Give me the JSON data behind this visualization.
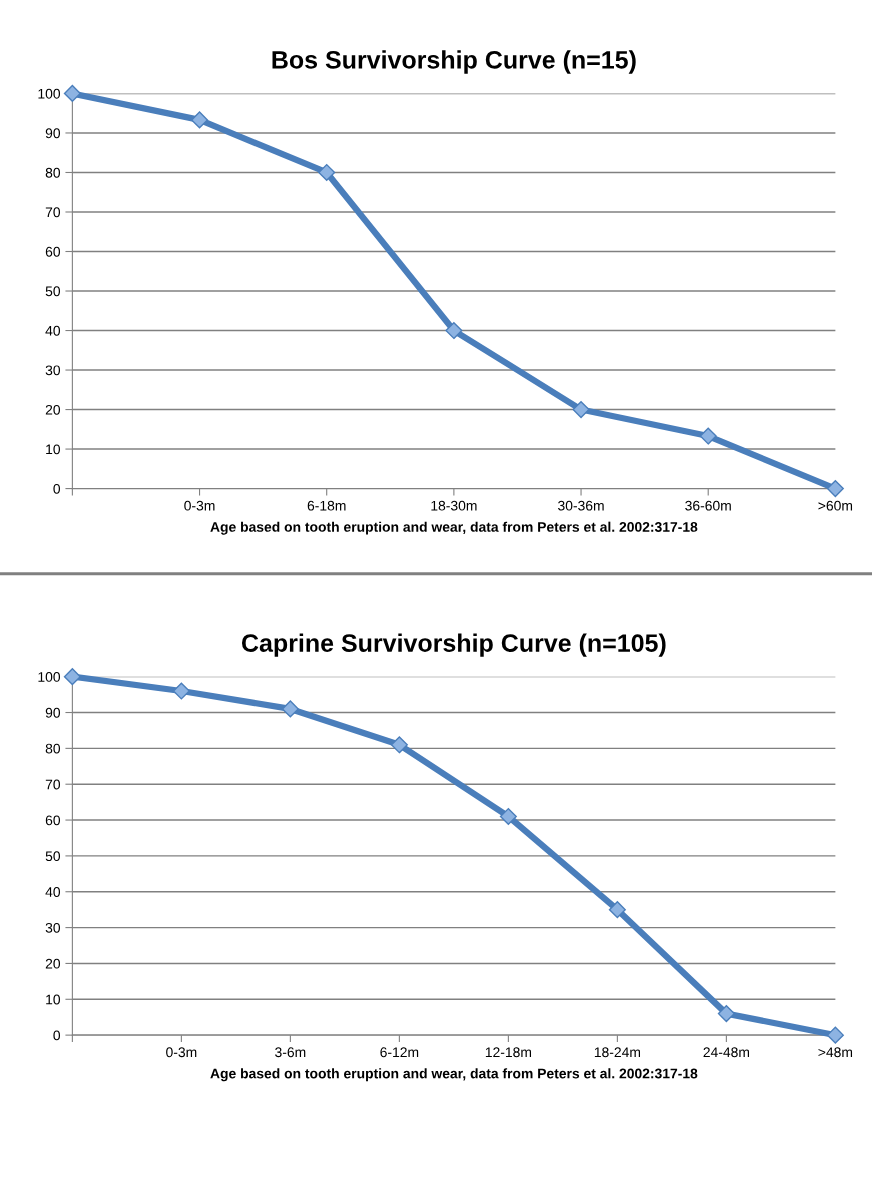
{
  "chart_data": [
    {
      "type": "line",
      "title": "Bos Survivorship Curve (n=15)",
      "xlabel": "Age based on tooth eruption and wear, data from Peters et al. 2002:317-18",
      "categories": [
        null,
        "0-3m",
        "6-18m",
        "18-30m",
        "30-36m",
        "36-60m",
        ">60m"
      ],
      "series": [
        {
          "color": "#4a7ebb",
          "values": [
            100,
            93.3,
            80,
            40,
            20,
            13.3,
            0
          ]
        }
      ],
      "ylim": [
        0,
        100
      ],
      "yticks": [
        0,
        10,
        20,
        30,
        40,
        50,
        60,
        70,
        80,
        90,
        100
      ],
      "grid": "y",
      "marker": "diamond",
      "line_style": "solid"
    },
    {
      "type": "line",
      "title": "Caprine Survivorship Curve (n=105)",
      "xlabel": "Age based on tooth eruption and wear, data from Peters et al. 2002:317-18",
      "categories": [
        null,
        "0-3m",
        "3-6m",
        "6-12m",
        "12-18m",
        "18-24m",
        "24-48m",
        ">48m"
      ],
      "series": [
        {
          "color": "#4a7ebb",
          "values": [
            100,
            96,
            91,
            81,
            61,
            35,
            6,
            0
          ]
        }
      ],
      "ylim": [
        0,
        100
      ],
      "yticks": [
        0,
        10,
        20,
        30,
        40,
        50,
        60,
        70,
        80,
        90,
        100
      ],
      "grid": "y",
      "marker": "diamond",
      "line_style": "solid"
    }
  ]
}
